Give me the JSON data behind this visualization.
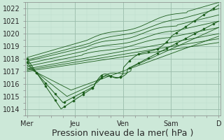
{
  "background_color": "#cce8d8",
  "plot_bg_color": "#cce8d8",
  "line_color": "#1a5c1a",
  "grid_major_color": "#99bbaa",
  "grid_minor_color": "#bbddcc",
  "ylim": [
    1013.5,
    1022.5
  ],
  "yticks": [
    1014,
    1015,
    1016,
    1017,
    1018,
    1019,
    1020,
    1021,
    1022
  ],
  "xlabel": "Pression niveau de la mer( hPa )",
  "xlabel_fontsize": 9,
  "tick_fontsize": 7,
  "xtick_labels": [
    "Mer",
    "Jeu",
    "Ven",
    "Sam",
    "D"
  ],
  "xtick_positions": [
    0,
    24,
    48,
    72,
    96
  ],
  "xlim": [
    -1,
    97
  ]
}
